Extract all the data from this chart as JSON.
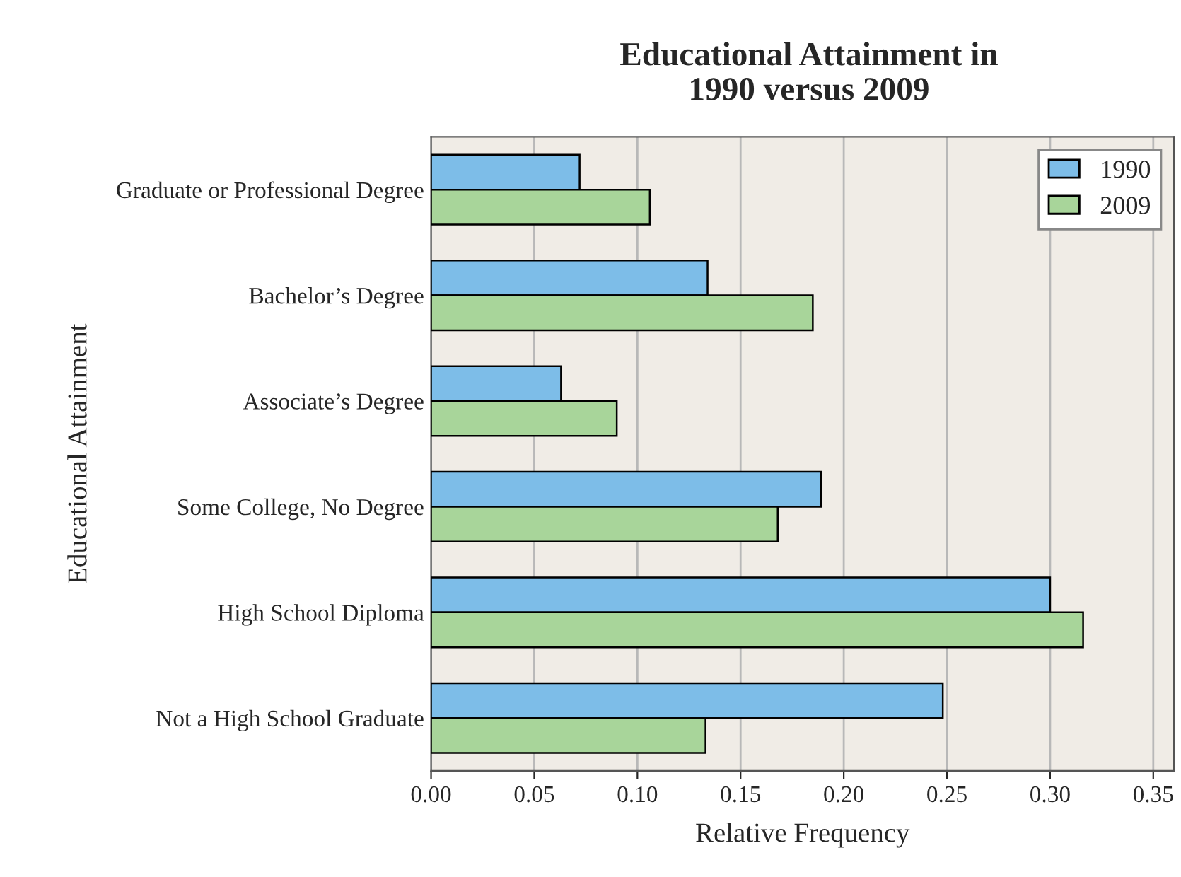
{
  "chart_data": {
    "type": "bar",
    "orientation": "horizontal",
    "title": "Educational Attainment in\n1990 versus 2009",
    "xlabel": "Relative Frequency",
    "ylabel": "Educational Attainment",
    "categories": [
      "Graduate or Professional Degree",
      "Bachelor’s Degree",
      "Associate’s Degree",
      "Some College, No Degree",
      "High School Diploma",
      "Not a High School Graduate"
    ],
    "series": [
      {
        "name": "1990",
        "color": "#7dbde8",
        "values": [
          0.072,
          0.134,
          0.063,
          0.189,
          0.3,
          0.248
        ]
      },
      {
        "name": "2009",
        "color": "#a8d59a",
        "values": [
          0.106,
          0.185,
          0.09,
          0.168,
          0.316,
          0.133
        ]
      }
    ],
    "xlim": [
      0,
      0.36
    ],
    "xticks": [
      {
        "value": 0,
        "label": "0.00"
      },
      0.05,
      {
        "value": 0.1,
        "label": "0.10"
      },
      0.15,
      {
        "value": 0.2,
        "label": "0.20"
      },
      0.25,
      {
        "value": 0.3,
        "label": "0.30"
      },
      0.35
    ],
    "grid": "x",
    "legend": "top right"
  }
}
